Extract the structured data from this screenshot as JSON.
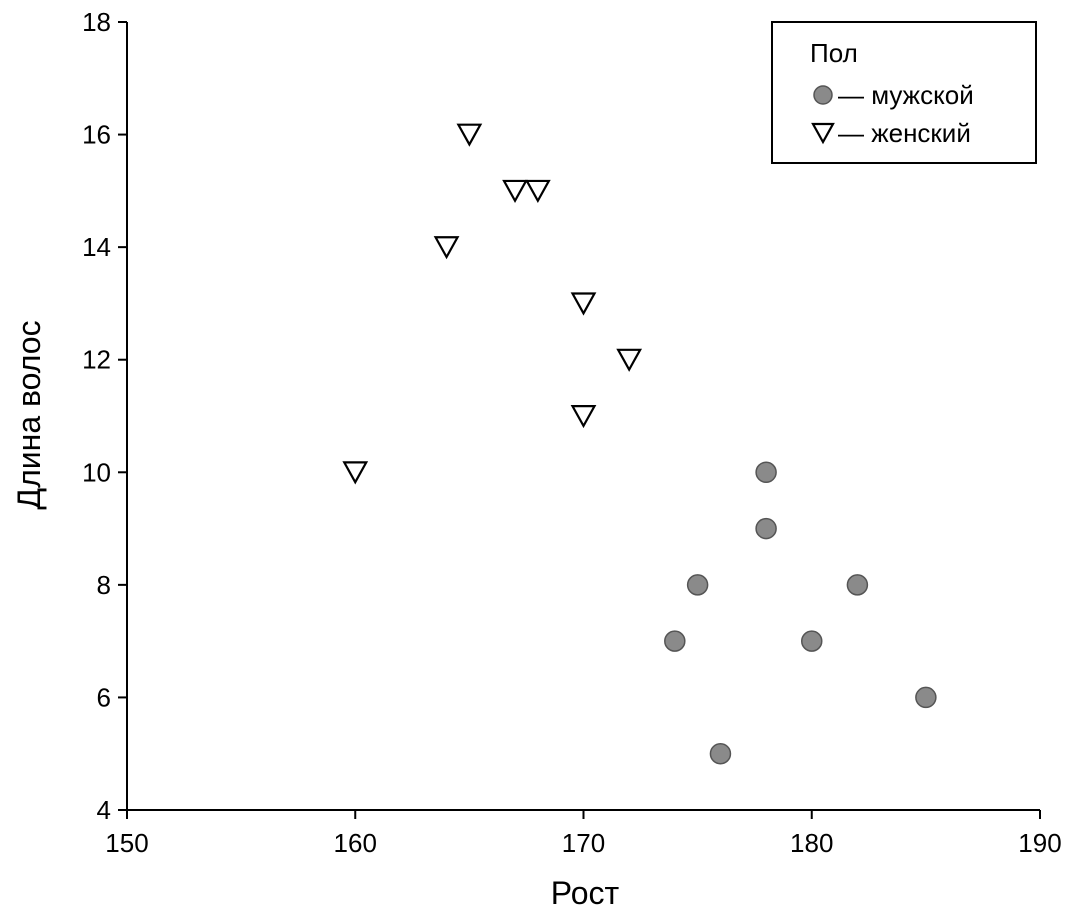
{
  "chart_data": {
    "type": "scatter",
    "title": "",
    "xlabel": "Рост",
    "ylabel": "Длина волос",
    "xlim": [
      150,
      190
    ],
    "ylim": [
      4,
      18
    ],
    "xticks": [
      150,
      160,
      170,
      180,
      190
    ],
    "yticks": [
      4,
      6,
      8,
      10,
      12,
      14,
      16,
      18
    ],
    "grid": false,
    "legend": {
      "title": "Пол",
      "placement": "top-right",
      "entries": [
        {
          "marker": "circle",
          "label": "— мужской"
        },
        {
          "marker": "triangle-down",
          "label": "— женский"
        }
      ]
    },
    "series": [
      {
        "name": "мужской",
        "marker": "circle",
        "color": "#8a8a8a",
        "points": [
          {
            "x": 178,
            "y": 10
          },
          {
            "x": 178,
            "y": 9
          },
          {
            "x": 175,
            "y": 8
          },
          {
            "x": 182,
            "y": 8
          },
          {
            "x": 174,
            "y": 7
          },
          {
            "x": 180,
            "y": 7
          },
          {
            "x": 185,
            "y": 6
          },
          {
            "x": 176,
            "y": 5
          }
        ]
      },
      {
        "name": "женский",
        "marker": "triangle-down",
        "color": "#000000",
        "points": [
          {
            "x": 165,
            "y": 16
          },
          {
            "x": 167,
            "y": 15
          },
          {
            "x": 168,
            "y": 15
          },
          {
            "x": 164,
            "y": 14
          },
          {
            "x": 170,
            "y": 13
          },
          {
            "x": 172,
            "y": 12
          },
          {
            "x": 170,
            "y": 11
          },
          {
            "x": 160,
            "y": 10
          }
        ]
      }
    ]
  }
}
